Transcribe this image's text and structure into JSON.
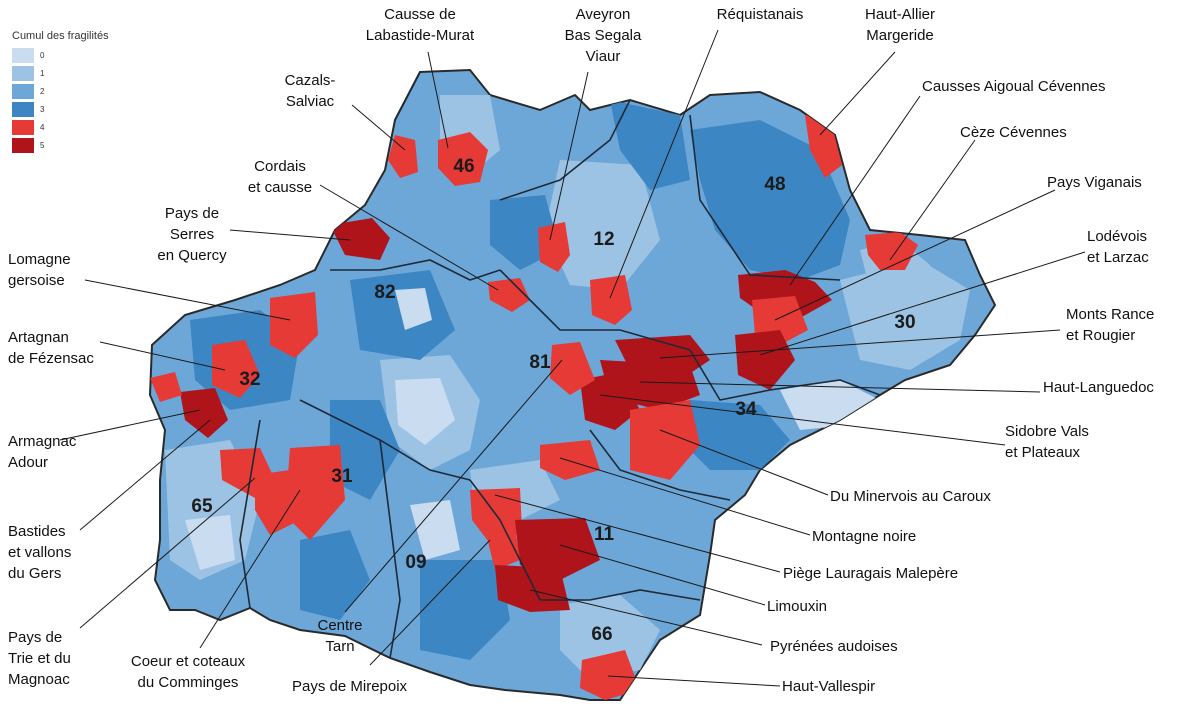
{
  "legend": {
    "title": "Cumul des fragilités",
    "items": [
      {
        "value": "0",
        "color": "#c9dcf0"
      },
      {
        "value": "1",
        "color": "#9cc3e4"
      },
      {
        "value": "2",
        "color": "#6ca7d8"
      },
      {
        "value": "3",
        "color": "#3d86c4"
      },
      {
        "value": "4",
        "color": "#e53a35"
      },
      {
        "value": "5",
        "color": "#b0141b"
      }
    ]
  },
  "departments": [
    "46",
    "48",
    "12",
    "82",
    "30",
    "81",
    "32",
    "34",
    "31",
    "65",
    "11",
    "09",
    "66"
  ],
  "territories": [
    {
      "id": "causse-labastide-murat",
      "lines": [
        "Causse de",
        "Labastide-Murat"
      ],
      "level": 5
    },
    {
      "id": "aveyron-bas-segala-viaur",
      "lines": [
        "Aveyron",
        "Bas Segala",
        "Viaur"
      ],
      "level": 4
    },
    {
      "id": "requistanais",
      "lines": [
        "Réquistanais"
      ],
      "level": 4
    },
    {
      "id": "haut-allier-margeride",
      "lines": [
        "Haut-Allier",
        "Margeride"
      ],
      "level": 4
    },
    {
      "id": "cazals-salviac",
      "lines": [
        "Cazals-",
        "Salviac"
      ],
      "level": 4
    },
    {
      "id": "causses-aigoual-cevennes",
      "lines": [
        "Causses Aigoual Cévennes"
      ],
      "level": 5
    },
    {
      "id": "ceze-cevennes",
      "lines": [
        "Cèze Cévennes"
      ],
      "level": 4
    },
    {
      "id": "cordais-causse",
      "lines": [
        "Cordais",
        "et causse"
      ],
      "level": 4
    },
    {
      "id": "pays-viganais",
      "lines": [
        "Pays Viganais"
      ],
      "level": 4
    },
    {
      "id": "pays-serres-quercy",
      "lines": [
        "Pays de",
        "Serres",
        "en Quercy"
      ],
      "level": 5
    },
    {
      "id": "lodevois-larzac",
      "lines": [
        "Lodévois",
        "et Larzac"
      ],
      "level": 5
    },
    {
      "id": "lomagne-gersoise",
      "lines": [
        "Lomagne",
        "gersoise"
      ],
      "level": 4
    },
    {
      "id": "monts-rance-rougier",
      "lines": [
        "Monts Rance",
        "et Rougier"
      ],
      "level": 5
    },
    {
      "id": "artagnan-fezensac",
      "lines": [
        "Artagnan",
        "de Fézensac"
      ],
      "level": 4
    },
    {
      "id": "haut-languedoc",
      "lines": [
        "Haut-Languedoc"
      ],
      "level": 5
    },
    {
      "id": "sidobre-vals-plateaux",
      "lines": [
        "Sidobre Vals",
        "et Plateaux"
      ],
      "level": 5
    },
    {
      "id": "armagnac-adour",
      "lines": [
        "Armagnac",
        "Adour"
      ],
      "level": 5
    },
    {
      "id": "du-minervois-caroux",
      "lines": [
        "Du Minervois au Caroux"
      ],
      "level": 4
    },
    {
      "id": "bastides-vallons-gers",
      "lines": [
        "Bastides",
        "et vallons",
        "du Gers"
      ],
      "level": 4
    },
    {
      "id": "montagne-noire",
      "lines": [
        "Montagne noire"
      ],
      "level": 4
    },
    {
      "id": "piege-lauragais-malepere",
      "lines": [
        "Piège Lauragais Malepère"
      ],
      "level": 4
    },
    {
      "id": "limouxin",
      "lines": [
        "Limouxin"
      ],
      "level": 5
    },
    {
      "id": "pays-trie-magnoac",
      "lines": [
        "Pays de",
        "Trie et du",
        "Magnoac"
      ],
      "level": 4
    },
    {
      "id": "coeur-coteaux-comminges",
      "lines": [
        "Coeur et coteaux",
        "du Comminges"
      ],
      "level": 4
    },
    {
      "id": "centre-tarn",
      "lines": [
        "Centre",
        "Tarn"
      ],
      "level": 4
    },
    {
      "id": "pays-mirepoix",
      "lines": [
        "Pays de Mirepoix"
      ],
      "level": 4
    },
    {
      "id": "pyrenees-audoises",
      "lines": [
        "Pyrénées audoises"
      ],
      "level": 5
    },
    {
      "id": "haut-vallespir",
      "lines": [
        "Haut-Vallespir"
      ],
      "level": 4
    }
  ]
}
